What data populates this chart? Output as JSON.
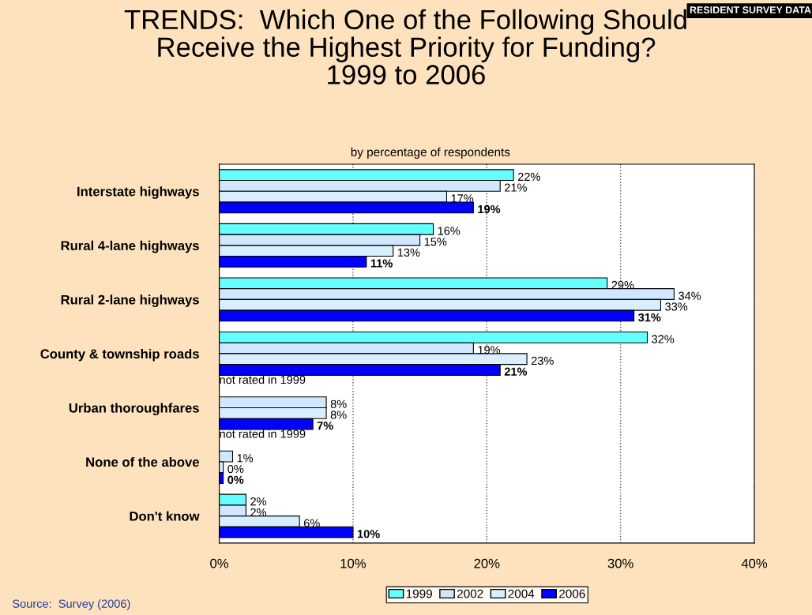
{
  "chart_data": {
    "type": "bar",
    "orientation": "horizontal",
    "title": "TRENDS:  Which One of the Following Should\nReceive the Highest Priority for Funding?\n1999 to 2006",
    "subtitle": "by percentage of respondents",
    "categories": [
      "Interstate highways",
      "Rural 4-lane highways",
      "Rural 2-lane highways",
      "County & township roads",
      "Urban thoroughfares",
      "None of the above",
      "Don't know"
    ],
    "series": [
      {
        "name": "1999",
        "color": "#66ffff",
        "values": [
          22,
          16,
          29,
          32,
          null,
          null,
          2
        ],
        "value_labels": [
          "22%",
          "16%",
          "29%",
          "32%",
          null,
          null,
          "2%"
        ]
      },
      {
        "name": "2002",
        "color": "#cfe8ff",
        "values": [
          21,
          15,
          34,
          19,
          8,
          1,
          2
        ],
        "value_labels": [
          "21%",
          "15%",
          "34%",
          "19%",
          "8%",
          "1%",
          "2%"
        ]
      },
      {
        "name": "2004",
        "color": "#d9eeff",
        "values": [
          17,
          13,
          33,
          23,
          8,
          0.3,
          6
        ],
        "value_labels": [
          "17%",
          "13%",
          "33%",
          "23%",
          "8%",
          "0%",
          "6%"
        ]
      },
      {
        "name": "2006",
        "color": "#0000ff",
        "values": [
          19,
          11,
          31,
          21,
          7,
          0.3,
          10
        ],
        "value_labels": [
          "19%",
          "11%",
          "31%",
          "21%",
          "7%",
          "0%",
          "10%"
        ]
      }
    ],
    "xlim": [
      0,
      40
    ],
    "xticks": [
      {
        "value": 0,
        "label": "0%"
      },
      {
        "value": 10,
        "label": "10%"
      },
      {
        "value": 20,
        "label": "20%"
      },
      {
        "value": 30,
        "label": "30%"
      },
      {
        "value": 40,
        "label": "40%"
      }
    ],
    "grid": "x",
    "legend": "bottom",
    "annotations": [
      "RESIDENT SURVEY DATA",
      "Source:  Survey (2006)",
      {
        "text": "not rated in 1999",
        "x": 0,
        "y": "Urban thoroughfares"
      },
      {
        "text": "not rated in 1999",
        "x": 0,
        "y": "None of the above"
      }
    ]
  }
}
